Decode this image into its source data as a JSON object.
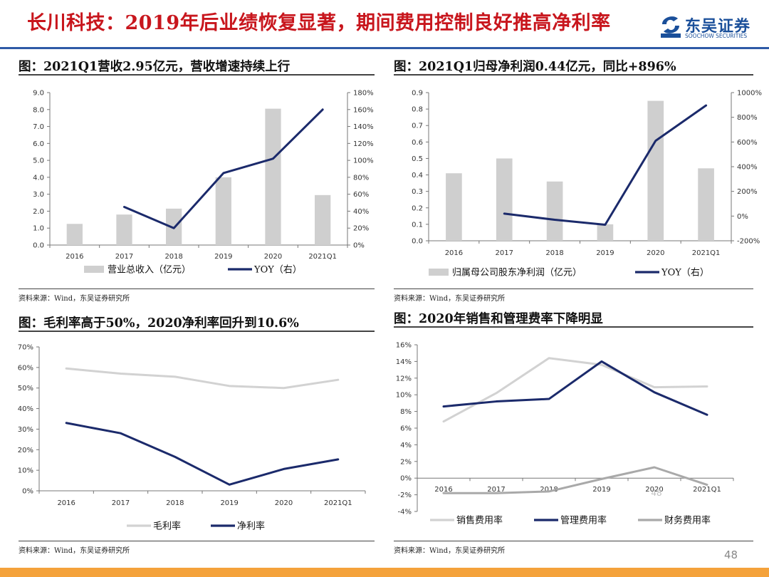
{
  "header": {
    "title": "长川科技：2019年后业绩恢复显著，期间费用控制良好推高净利率",
    "logo_cn": "东吴证券",
    "logo_en": "SOOCHOW SECURITIES"
  },
  "page_number": "48",
  "colors": {
    "bar": "#cfcfcf",
    "line_dark": "#1b2a6b",
    "line_light": "#d2d2d2",
    "line_gray": "#a9a9a9",
    "title_red": "#c8161d",
    "accent_blue": "#2e5aa7",
    "bottom_bar": "#f4a23b"
  },
  "panels": [
    {
      "title": "图：2021Q1营收2.95亿元，营收增速持续上行",
      "source": "资料来源：Wind，东吴证券研究所"
    },
    {
      "title": "图：2021Q1归母净利润0.44亿元，同比+896%",
      "source": "资料来源：Wind，东吴证券研究所"
    },
    {
      "title": "图：毛利率高于50%，2020净利率回升到10.6%",
      "source": "资料来源：Wind，东吴证券研究所"
    },
    {
      "title": "图：2020年销售和管理费率下降明显",
      "source": "资料来源：Wind，东吴证券研究所"
    }
  ],
  "chart_data": [
    {
      "type": "bar+line",
      "categories": [
        "2016",
        "2017",
        "2018",
        "2019",
        "2020",
        "2021Q1"
      ],
      "series": [
        {
          "name": "营业总收入（亿元）",
          "kind": "bar",
          "axis": "left",
          "values": [
            1.25,
            1.8,
            2.15,
            4.0,
            8.05,
            2.95
          ]
        },
        {
          "name": "YOY（右）",
          "kind": "line",
          "axis": "right",
          "values": [
            null,
            45,
            20,
            85,
            102,
            160
          ]
        }
      ],
      "y_left": {
        "min": 0,
        "max": 9,
        "step": 1,
        "ticks": [
          "0.0",
          "1.0",
          "2.0",
          "3.0",
          "4.0",
          "5.0",
          "6.0",
          "7.0",
          "8.0",
          "9.0"
        ]
      },
      "y_right": {
        "min": 0,
        "max": 180,
        "step": 20,
        "ticks": [
          "0%",
          "20%",
          "40%",
          "60%",
          "80%",
          "100%",
          "120%",
          "140%",
          "160%",
          "180%"
        ]
      },
      "legend_position": "bottom"
    },
    {
      "type": "bar+line",
      "categories": [
        "2016",
        "2017",
        "2018",
        "2019",
        "2020",
        "2021Q1"
      ],
      "series": [
        {
          "name": "归属母公司股东净利润（亿元）",
          "kind": "bar",
          "axis": "left",
          "values": [
            0.41,
            0.5,
            0.36,
            0.1,
            0.85,
            0.44
          ]
        },
        {
          "name": "YOY（右）",
          "kind": "line",
          "axis": "right",
          "values": [
            null,
            20,
            -30,
            -70,
            610,
            896
          ]
        }
      ],
      "y_left": {
        "min": 0,
        "max": 0.9,
        "step": 0.1,
        "ticks": [
          "0.0",
          "0.1",
          "0.2",
          "0.3",
          "0.4",
          "0.5",
          "0.6",
          "0.7",
          "0.8",
          "0.9"
        ]
      },
      "y_right": {
        "min": -200,
        "max": 1000,
        "step": 200,
        "ticks": [
          "-200%",
          "0%",
          "200%",
          "400%",
          "600%",
          "800%",
          "1000%"
        ]
      },
      "legend_position": "bottom"
    },
    {
      "type": "line",
      "categories": [
        "2016",
        "2017",
        "2018",
        "2019",
        "2020",
        "2021Q1"
      ],
      "series": [
        {
          "name": "毛利率",
          "values": [
            59.5,
            57,
            55.5,
            51,
            50,
            54
          ]
        },
        {
          "name": "净利率",
          "values": [
            33,
            28,
            16.5,
            3,
            10.6,
            15.3
          ]
        }
      ],
      "y": {
        "min": 0,
        "max": 70,
        "step": 10,
        "ticks": [
          "0%",
          "10%",
          "20%",
          "30%",
          "40%",
          "50%",
          "60%",
          "70%"
        ]
      },
      "legend_position": "bottom"
    },
    {
      "type": "line",
      "categories": [
        "2016",
        "2017",
        "2018",
        "2019",
        "2020",
        "2021Q1"
      ],
      "series": [
        {
          "name": "销售费用率",
          "values": [
            6.8,
            10.2,
            14.4,
            13.6,
            10.9,
            11.0
          ]
        },
        {
          "name": "管理费用率",
          "values": [
            8.6,
            9.2,
            9.5,
            14.0,
            10.3,
            7.6
          ]
        },
        {
          "name": "财务费用率",
          "values": [
            -1.8,
            -1.8,
            -1.6,
            -0.1,
            1.3,
            -0.8
          ]
        }
      ],
      "y": {
        "min": -4,
        "max": 16,
        "step": 2,
        "ticks": [
          "-4%",
          "-2%",
          "0%",
          "2%",
          "4%",
          "6%",
          "8%",
          "10%",
          "12%",
          "14%",
          "16%"
        ]
      },
      "overlay_text": "48",
      "legend_position": "bottom"
    }
  ]
}
